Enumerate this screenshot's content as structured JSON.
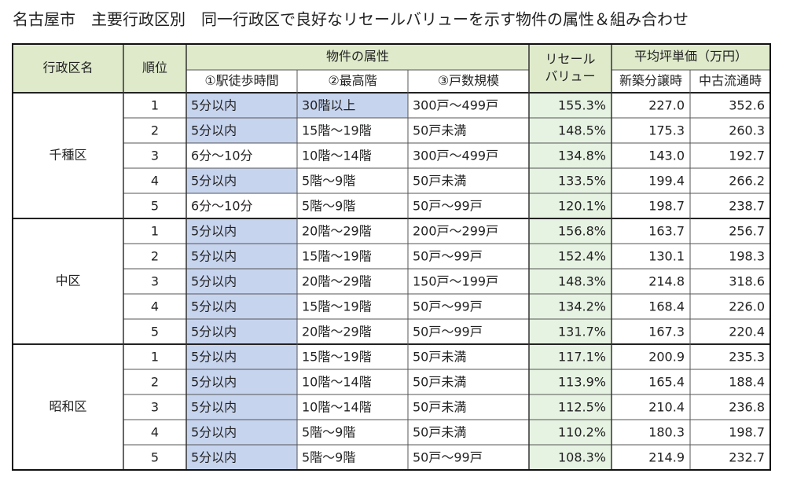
{
  "title": "名古屋市　主要行政区別　同一行政区で良好なリセールバリューを示す物件の属性＆組み合わせ",
  "table": {
    "header": {
      "district": "行政区名",
      "rank": "順位",
      "attributes": "物件の属性",
      "attribute_columns": [
        "①駅徒歩時間",
        "②最高階",
        "③戸数規模"
      ],
      "resale": [
        "リセール",
        "バリュー"
      ],
      "price": "平均坪単価（万円）",
      "price_columns": [
        "新築分譲時",
        "中古流通時"
      ]
    },
    "groups": [
      {
        "district": "千種区",
        "rows": [
          [
            "1",
            "5分以内",
            "30階以上",
            "300戸〜499戸",
            "155.3%",
            "227.0",
            "352.6"
          ],
          [
            "2",
            "5分以内",
            "15階〜19階",
            "50戸未満",
            "148.5%",
            "175.3",
            "260.3"
          ],
          [
            "3",
            "6分〜10分",
            "10階〜14階",
            "300戸〜499戸",
            "134.8%",
            "143.0",
            "192.7"
          ],
          [
            "4",
            "5分以内",
            "5階〜9階",
            "50戸未満",
            "133.5%",
            "199.4",
            "266.2"
          ],
          [
            "5",
            "6分〜10分",
            "5階〜9階",
            "50戸〜99戸",
            "120.1%",
            "198.7",
            "238.7"
          ]
        ]
      },
      {
        "district": "中区",
        "rows": [
          [
            "1",
            "5分以内",
            "20階〜29階",
            "200戸〜299戸",
            "156.8%",
            "163.7",
            "256.7"
          ],
          [
            "2",
            "5分以内",
            "15階〜19階",
            "50戸〜99戸",
            "152.4%",
            "130.1",
            "198.3"
          ],
          [
            "3",
            "5分以内",
            "20階〜29階",
            "150戸〜199戸",
            "148.3%",
            "214.8",
            "318.6"
          ],
          [
            "4",
            "5分以内",
            "15階〜19階",
            "50戸〜99戸",
            "134.2%",
            "168.4",
            "226.0"
          ],
          [
            "5",
            "5分以内",
            "20階〜29階",
            "50戸〜99戸",
            "131.7%",
            "167.3",
            "220.4"
          ]
        ]
      },
      {
        "district": "昭和区",
        "rows": [
          [
            "1",
            "5分以内",
            "15階〜19階",
            "50戸未満",
            "117.1%",
            "200.9",
            "235.3"
          ],
          [
            "2",
            "5分以内",
            "10階〜14階",
            "50戸未満",
            "113.9%",
            "165.4",
            "188.4"
          ],
          [
            "3",
            "5分以内",
            "10階〜14階",
            "50戸未満",
            "112.5%",
            "210.4",
            "236.8"
          ],
          [
            "4",
            "5分以内",
            "5階〜9階",
            "50戸未満",
            "110.2%",
            "180.3",
            "198.7"
          ],
          [
            "5",
            "5分以内",
            "5階〜9階",
            "50戸〜99戸",
            "108.3%",
            "214.9",
            "232.7"
          ]
        ]
      }
    ]
  },
  "highlight": {
    "color": "#c7d4ee",
    "cells": [
      "table.groups.0.rows.0.1",
      "table.groups.0.rows.0.2",
      "table.groups.0.rows.1.1",
      "table.groups.0.rows.3.1",
      "table.groups.1.rows.0.1",
      "table.groups.1.rows.1.1",
      "table.groups.1.rows.2.1",
      "table.groups.1.rows.3.1",
      "table.groups.1.rows.4.1",
      "table.groups.2.rows.0.1",
      "table.groups.2.rows.1.1",
      "table.groups.2.rows.2.1",
      "table.groups.2.rows.3.1",
      "table.groups.2.rows.4.1"
    ]
  }
}
